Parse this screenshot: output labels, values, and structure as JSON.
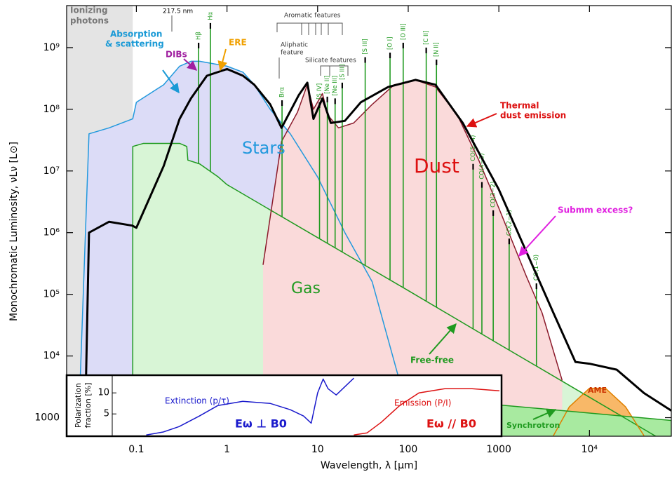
{
  "chart_data": [
    {
      "type": "line",
      "xlog": true,
      "ylog": true,
      "x_label": "Wavelength, λ [μm]",
      "y_label": "Monochromatic Luminosity, νLν [L⊙]",
      "xlim": [
        0.017,
        80000
      ],
      "ylim": [
        500,
        4800000000
      ],
      "xticks": [
        0.1,
        1,
        10,
        100,
        1000,
        {
          "value": 10000,
          "label": "10⁴"
        }
      ],
      "yticks": [
        1000,
        {
          "value": 10000,
          "label": "10⁴"
        },
        {
          "value": 100000,
          "label": "10⁵"
        },
        {
          "value": 1000000,
          "label": "10⁶"
        },
        {
          "value": 10000000,
          "label": "10⁷"
        },
        {
          "value": 100000000,
          "label": "10⁸"
        },
        {
          "value": 1000000000,
          "label": "10⁹"
        }
      ],
      "ionizing_limit": 0.0912,
      "ionizing_color": "#e4e4e4",
      "series": [
        {
          "name": "Stars",
          "color": "#2299dd",
          "fill": "#dcdcf7",
          "x": [
            0.0228,
            0.03,
            0.05,
            0.0912,
            0.1,
            0.2,
            0.3,
            0.4,
            0.5,
            0.7,
            1,
            1.5,
            2,
            3,
            5,
            10,
            20,
            40,
            80
          ],
          "values": [
            510,
            40000000,
            50000000,
            70000000,
            130000000,
            250000000,
            500000000,
            600000000,
            600000000,
            550000000,
            500000000,
            400000000,
            250000000,
            100000000,
            40000000,
            8000000,
            1000000,
            160000,
            4000
          ]
        },
        {
          "name": "Gas",
          "color": "#1f9a1f",
          "fill": "#d8f5d6",
          "x": [
            0.0912,
            0.0913,
            0.12,
            0.2,
            0.3,
            0.36,
            0.37,
            0.5,
            0.8,
            1,
            10,
            100,
            1000,
            5000,
            80000
          ],
          "values": [
            510,
            25000000,
            28000000,
            28000000,
            28000000,
            25000000,
            15000000,
            13000000,
            8000000,
            6000000,
            830000,
            115000,
            15600,
            3900,
            355
          ]
        },
        {
          "name": "Dust",
          "color": "#8b1a2b",
          "fill": "#fadada",
          "x": [
            2.5,
            4,
            6,
            7.7,
            9,
            11.3,
            13,
            17,
            25,
            40,
            70,
            120,
            200,
            350,
            600,
            1000,
            2000,
            3000,
            5000
          ],
          "values": [
            300000,
            30000000,
            90000000,
            250000000,
            100000000,
            180000000,
            80000000,
            50000000,
            60000000,
            120000000,
            250000000,
            300000000,
            230000000,
            80000000,
            15000000,
            2500000,
            200000,
            50000,
            4000
          ]
        },
        {
          "name": "AME",
          "color": "#e08000",
          "fill": "#f8b868",
          "x": [
            4000,
            6000,
            10000,
            15000,
            25000,
            40000
          ],
          "values": [
            510,
            1500,
            3000,
            3000,
            1500,
            510
          ]
        },
        {
          "name": "Synchrotron",
          "color": "#1f9a1f",
          "fill": "#a8eaa0",
          "x": [
            1054,
            80000
          ],
          "values": [
            1600,
            900
          ]
        },
        {
          "color": "#000000",
          "x": [
            0.027,
            0.03,
            0.05,
            0.09,
            0.1,
            0.2,
            0.3,
            0.4,
            0.6,
            1,
            1.5,
            2,
            3,
            4,
            6.2,
            7.7,
            9,
            11.3,
            14,
            20,
            30,
            60,
            120,
            200,
            400,
            1000,
            2000,
            4000,
            7000,
            10000,
            20000,
            40000,
            80000
          ],
          "values": [
            510,
            1000000,
            1500000,
            1300000,
            1200000,
            12000000,
            70000000,
            150000000,
            350000000,
            450000000,
            350000000,
            250000000,
            120000000,
            50000000,
            170000000,
            270000000,
            70000000,
            150000000,
            60000000,
            65000000,
            130000000,
            230000000,
            300000000,
            250000000,
            60000000,
            5000000,
            500000,
            50000,
            8000,
            7500,
            6000,
            2500,
            1300
          ]
        }
      ],
      "emission_lines": {
        "color": "#1f9a1f",
        "labels": [
          "Hβ",
          "Hα",
          "Brα",
          "[S IV]",
          "[Ne II]",
          "[Ne III]",
          "[S III]",
          "[S III]",
          "[O I]",
          "[O III]",
          "[C II]",
          "[N II]",
          "CO(5−4)",
          "CO(4−3)",
          "CO(3−2)",
          "CO(2−1)",
          "CO(1−0)"
        ],
        "x": [
          0.486,
          0.656,
          4.05,
          10.5,
          12.8,
          15.6,
          18.7,
          33.5,
          63,
          88,
          158,
          205,
          520,
          650,
          867,
          1300,
          2600
        ],
        "values": [
          1200000000,
          2500000000,
          140000000,
          130000000,
          160000000,
          150000000,
          270000000,
          700000000,
          830000000,
          1200000000,
          1000000000,
          640000000,
          13000000,
          6600000,
          2300000,
          800000,
          150000
        ]
      },
      "annotations": [
        "Ionizing",
        "photons",
        "217.5 nm",
        "Absorption",
        "& scattering",
        "DIBs",
        "ERE",
        "Aromatic features",
        "Aliphatic",
        "feature",
        "Silicate features",
        "Thermal",
        "dust emission",
        "Submm excess?",
        "Free-free"
      ]
    },
    {
      "type": "line",
      "xlog": true,
      "ylog": false,
      "y_label": [
        "Polarization",
        "fraction [%]"
      ],
      "xlim": [
        0.055,
        1054
      ],
      "ylim": [
        -0.3,
        14.2
      ],
      "yticks": [
        5,
        10
      ],
      "series": [
        {
          "name": "Extinction (p/τ)",
          "color": "#1a1acc",
          "x": [
            0.13,
            0.2,
            0.3,
            0.5,
            0.8,
            1.5,
            3,
            5,
            7,
            8.5,
            10,
            11.5,
            13,
            16,
            20,
            25
          ],
          "values": [
            0,
            0.7,
            2,
            4.5,
            7,
            8,
            7.5,
            6,
            4.5,
            2.8,
            10,
            13.3,
            11,
            9.5,
            11.5,
            13.5
          ]
        },
        {
          "name": "Emission (P/I)",
          "color": "#dd1111",
          "x": [
            25,
            35,
            50,
            80,
            130,
            250,
            500,
            1000
          ],
          "values": [
            0,
            0.5,
            3,
            7,
            10,
            11,
            11,
            10.5
          ]
        }
      ],
      "annotations": [
        "Eω ⊥ B0",
        "Eω // B0"
      ]
    }
  ]
}
